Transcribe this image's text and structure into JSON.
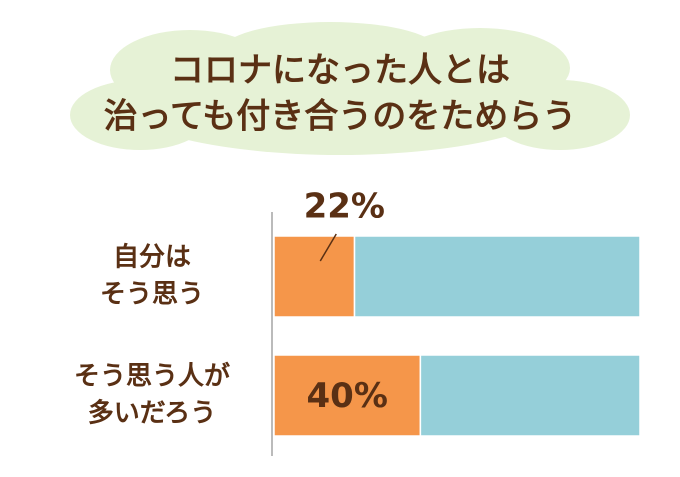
{
  "chart_data": {
    "type": "stacked-bar-horizontal",
    "title": [
      "コロナになった人とは",
      "治っても付き合うのをためらう"
    ],
    "categories": [
      [
        "自分は",
        "そう思う"
      ],
      [
        "そう思う人が",
        "多いだろう"
      ]
    ],
    "series": [
      {
        "color": "#f5964a",
        "values": [
          22,
          40
        ],
        "value_labels": [
          "22%",
          "40%"
        ]
      },
      {
        "color": "#95cfd9",
        "values": [
          78,
          60
        ]
      }
    ],
    "xlim": [
      0,
      100
    ]
  }
}
